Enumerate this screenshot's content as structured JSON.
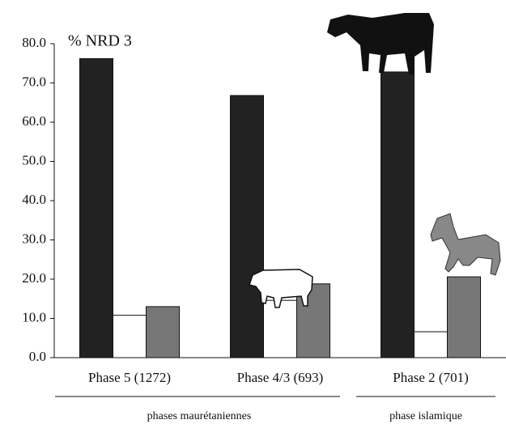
{
  "chart_data": {
    "type": "bar",
    "annotations": [
      "% NRD 3",
      "phases maurétaniennes",
      "phase islamique"
    ],
    "categories": [
      "Phase 5 (1272)",
      "Phase 4/3 (693)",
      "Phase 2 (701)"
    ],
    "series": [
      {
        "color": "#222222",
        "values": [
          76.2,
          66.8,
          72.8
        ]
      },
      {
        "color": "#ffffff",
        "values": [
          10.8,
          14.6,
          6.6
        ]
      },
      {
        "color": "#777777",
        "values": [
          13.0,
          18.8,
          20.6
        ]
      }
    ],
    "ylim": [
      0,
      80
    ],
    "yticks": [
      {
        "value": 0,
        "label": "0.0"
      },
      {
        "value": 10,
        "label": "10.0"
      },
      {
        "value": 20,
        "label": "20.0"
      },
      {
        "value": 30,
        "label": "30.0"
      },
      {
        "value": 40,
        "label": "40.0"
      },
      {
        "value": 50,
        "label": "50.0"
      },
      {
        "value": 60,
        "label": "60.0"
      },
      {
        "value": 70,
        "label": "70.0"
      },
      {
        "value": 80,
        "label": "80.0"
      }
    ],
    "grid": false
  }
}
